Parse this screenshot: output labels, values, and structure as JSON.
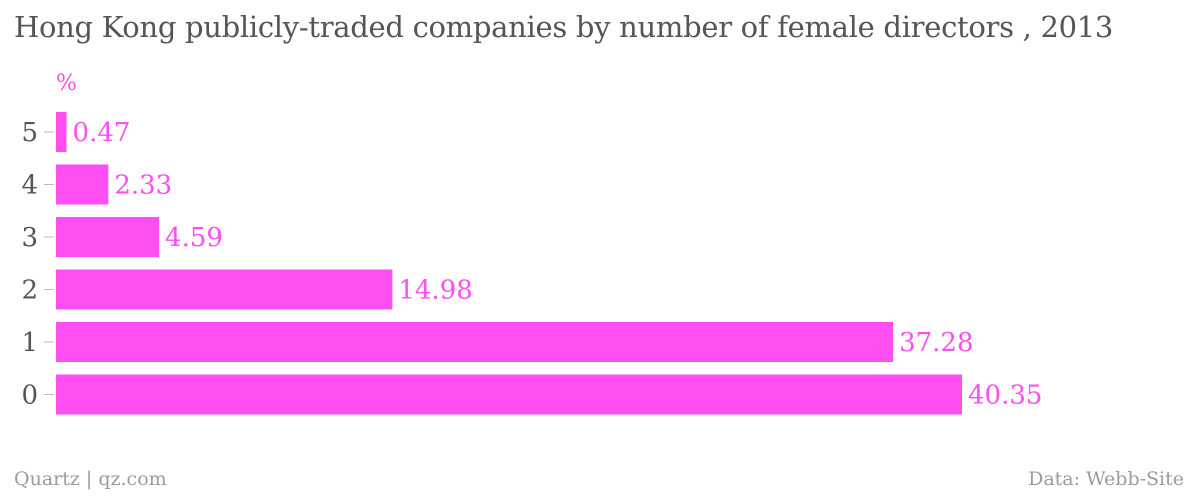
{
  "header": {
    "title": "Hong Kong publicly-traded companies by number of female directors , 2013"
  },
  "footer": {
    "source_left": "Quartz | qz.com",
    "source_right": "Data: Webb-Site"
  },
  "colors": {
    "bar": "#ff4ef2",
    "value_text": "#ff4ef2",
    "tick_text": "#555555",
    "tick_mark": "#bbbbbb"
  },
  "chart_data": {
    "type": "bar",
    "orientation": "horizontal",
    "title": "Hong Kong publicly-traded companies by number of female directors , 2013",
    "unit": "%",
    "categories": [
      "5",
      "4",
      "3",
      "2",
      "1",
      "0"
    ],
    "values": [
      0.47,
      2.33,
      4.59,
      14.98,
      37.28,
      40.35
    ],
    "value_labels": [
      "0.47",
      "2.33",
      "4.59",
      "14.98",
      "37.28",
      "40.35"
    ],
    "xlim": [
      0,
      40.35
    ],
    "grid": false,
    "legend": "none"
  }
}
